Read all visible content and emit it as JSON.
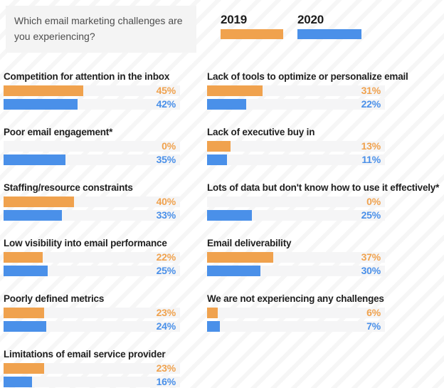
{
  "question": {
    "text": "Which email marketing challenges are you experiencing?"
  },
  "legend": {
    "entries": [
      {
        "label": "2019",
        "color": "#F0A24E"
      },
      {
        "label": "2020",
        "color": "#4A90E9"
      }
    ]
  },
  "colors": {
    "orange": "#F0A24E",
    "blue": "#4A90E9",
    "track": "#F5F5F6"
  },
  "columns": [
    {
      "items": [
        {
          "label": "Competition for attention in the inbox",
          "y2019": 45,
          "y2020": 42,
          "y2019_label": "45%",
          "y2020_label": "42%"
        },
        {
          "label": "Poor email engagement*",
          "y2019": 0,
          "y2020": 35,
          "y2019_label": "0%",
          "y2020_label": "35%"
        },
        {
          "label": "Staffing/resource constraints",
          "y2019": 40,
          "y2020": 33,
          "y2019_label": "40%",
          "y2020_label": "33%"
        },
        {
          "label": "Low visibility into email performance",
          "y2019": 22,
          "y2020": 25,
          "y2019_label": "22%",
          "y2020_label": "25%"
        },
        {
          "label": "Poorly defined metrics",
          "y2019": 23,
          "y2020": 24,
          "y2019_label": "23%",
          "y2020_label": "24%"
        },
        {
          "label": "Limitations of email service provider",
          "y2019": 23,
          "y2020": 16,
          "y2019_label": "23%",
          "y2020_label": "16%"
        }
      ]
    },
    {
      "items": [
        {
          "label": "Lack of tools to optimize or personalize email",
          "y2019": 31,
          "y2020": 22,
          "y2019_label": "31%",
          "y2020_label": "22%"
        },
        {
          "label": "Lack of executive buy in",
          "y2019": 13,
          "y2020": 11,
          "y2019_label": "13%",
          "y2020_label": "11%"
        },
        {
          "label": "Lots of data but don't know how to use it effectively*",
          "y2019": 0,
          "y2020": 25,
          "y2019_label": "0%",
          "y2020_label": "25%"
        },
        {
          "label": "Email deliverability",
          "y2019": 37,
          "y2020": 30,
          "y2019_label": "37%",
          "y2020_label": "30%"
        },
        {
          "label": "We are not experiencing any challenges",
          "y2019": 6,
          "y2020": 7,
          "y2019_label": "6%",
          "y2020_label": "7%"
        }
      ]
    }
  ],
  "chart_data": {
    "type": "bar",
    "title": "Which email marketing challenges are you experiencing?",
    "unit": "%",
    "xlim": [
      0,
      100
    ],
    "grid": false,
    "legend_position": "top-right",
    "categories": [
      "Competition for attention in the inbox",
      "Poor email engagement*",
      "Staffing/resource constraints",
      "Low visibility into email performance",
      "Poorly defined metrics",
      "Limitations of email service provider",
      "Lack of tools to optimize or personalize email",
      "Lack of executive buy in",
      "Lots of data but don't know how to use it effectively*",
      "Email deliverability",
      "We are not experiencing any challenges"
    ],
    "series": [
      {
        "name": "2019",
        "color": "#F0A24E",
        "values": [
          45,
          0,
          40,
          22,
          23,
          23,
          31,
          13,
          0,
          37,
          6
        ]
      },
      {
        "name": "2020",
        "color": "#4A90E9",
        "values": [
          42,
          35,
          33,
          25,
          24,
          16,
          22,
          11,
          25,
          30,
          7
        ]
      }
    ]
  }
}
